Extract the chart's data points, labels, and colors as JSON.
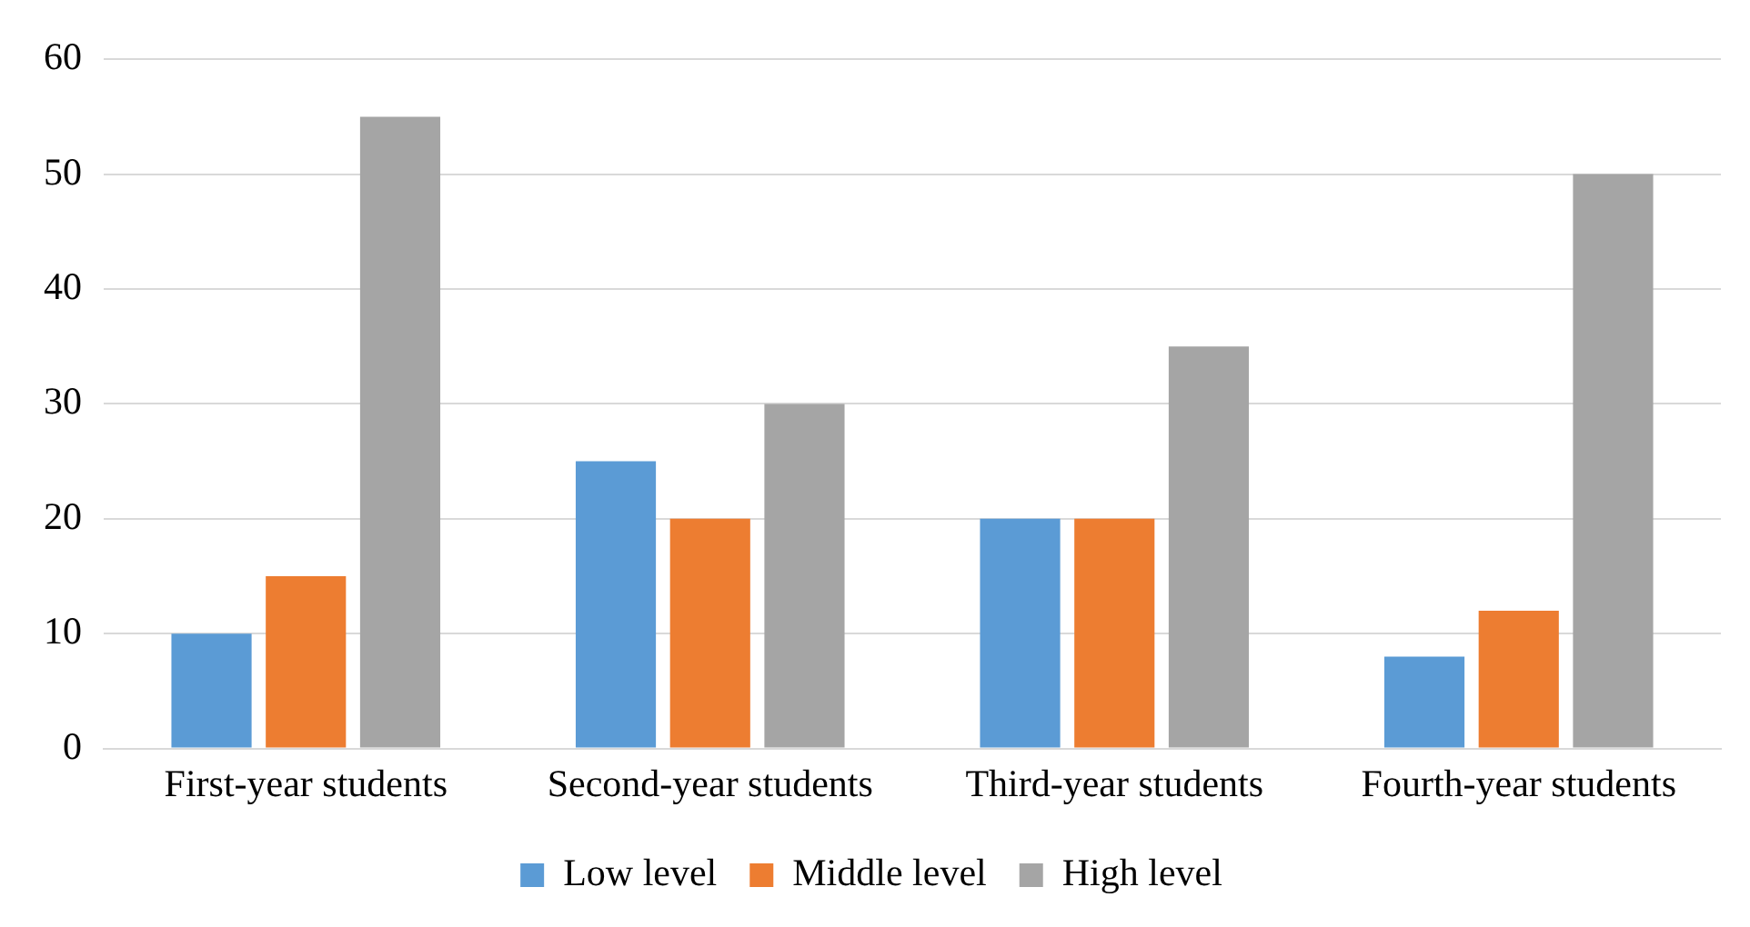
{
  "chart_data": {
    "type": "bar",
    "categories": [
      "First-year students",
      "Second-year students",
      "Third-year students",
      "Fourth-year students"
    ],
    "series": [
      {
        "name": "Low level",
        "color": "#5b9bd5",
        "values": [
          10,
          25,
          20,
          8
        ]
      },
      {
        "name": "Middle level",
        "color": "#ed7d31",
        "values": [
          15,
          20,
          20,
          12
        ]
      },
      {
        "name": "High level",
        "color": "#a5a5a5",
        "values": [
          55,
          30,
          35,
          50
        ]
      }
    ],
    "ylim": [
      0,
      60
    ],
    "yticks": [
      0,
      10,
      20,
      30,
      40,
      50,
      60
    ],
    "grid": "y",
    "legend": "bottom"
  }
}
